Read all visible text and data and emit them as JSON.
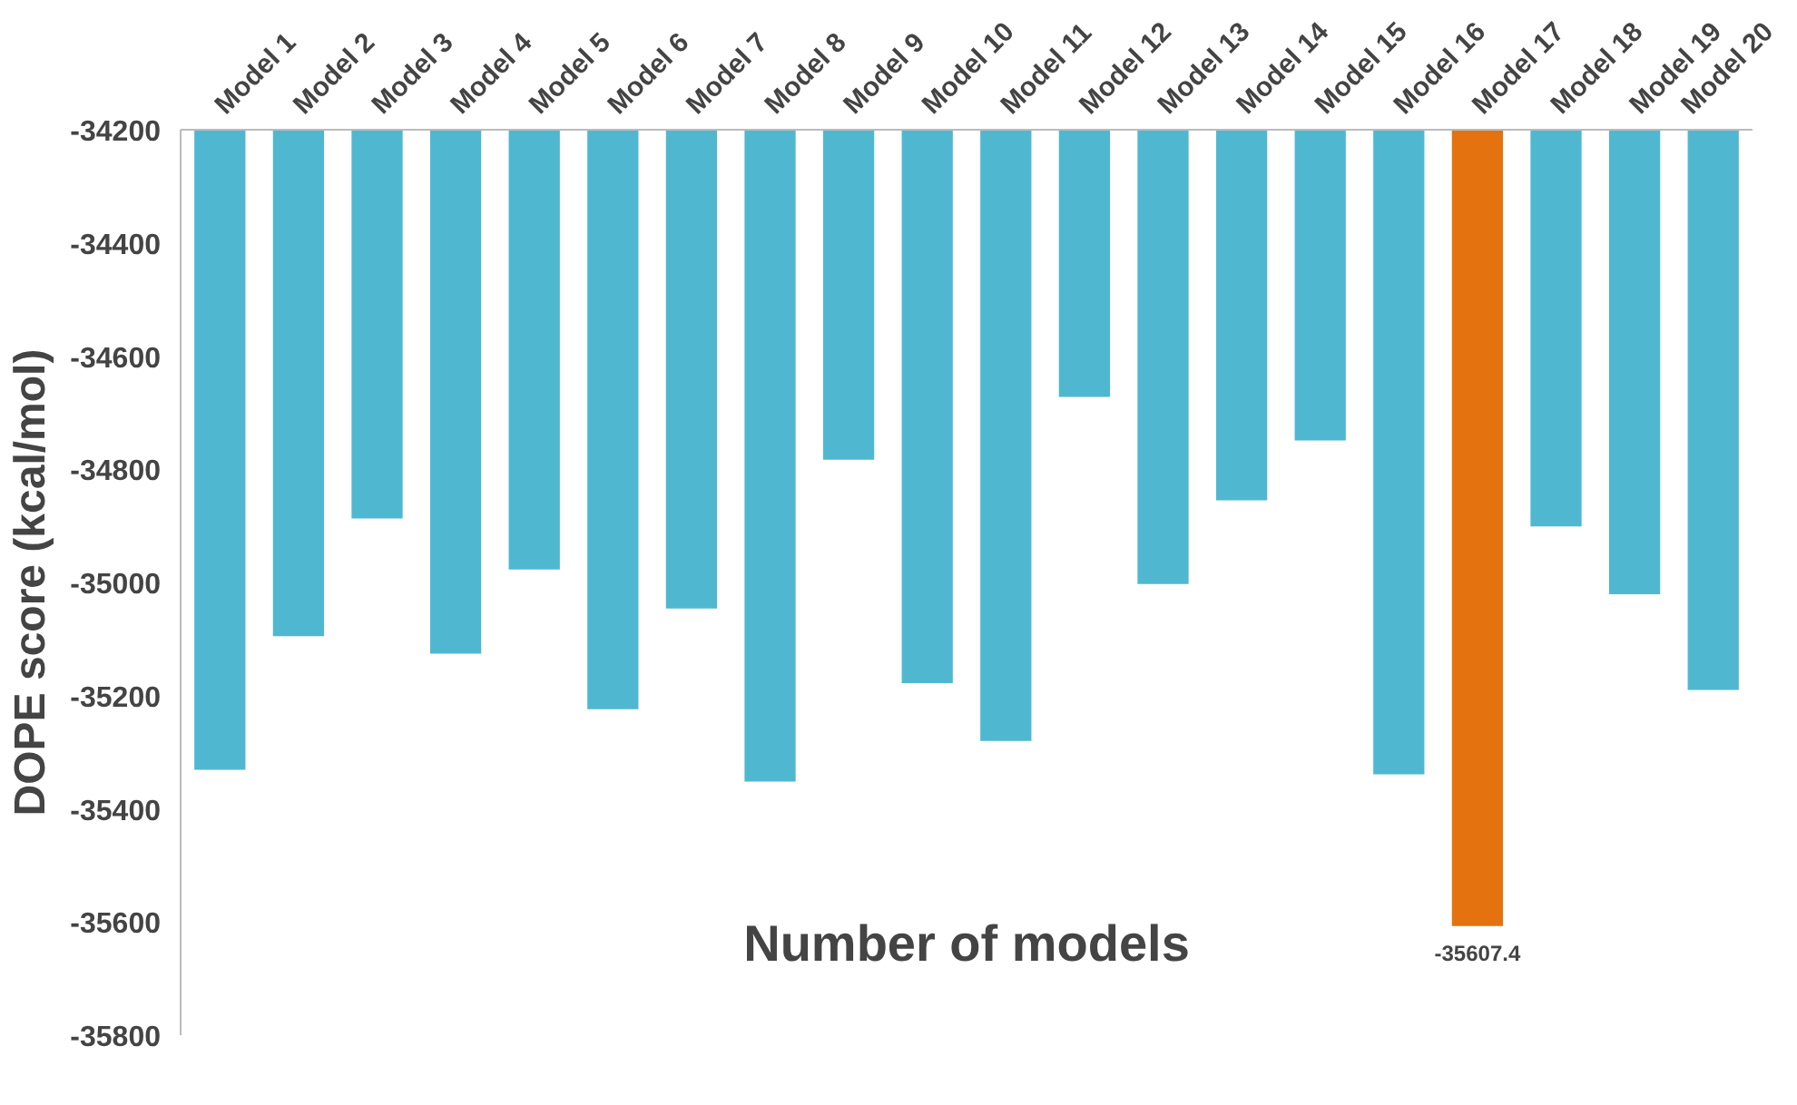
{
  "chart_data": {
    "type": "bar",
    "xlabel": "Number of models",
    "ylabel": "DOPE score (kcal/mol)",
    "categories": [
      "Model 1",
      "Model 2",
      "Model 3",
      "Model 4",
      "Model 5",
      "Model 6",
      "Model 7",
      "Model 8",
      "Model 9",
      "Model 10",
      "Model 11",
      "Model 12",
      "Model 13",
      "Model 14",
      "Model 15",
      "Model 16",
      "Model 17",
      "Model 18",
      "Model 19",
      "Model 20"
    ],
    "values": [
      -35331,
      -35095,
      -34887,
      -35126,
      -34977,
      -35224,
      -35046,
      -35352,
      -34783,
      -35178,
      -35280,
      -34672,
      -35003,
      -34855,
      -34749,
      -35339,
      -35607.4,
      -34901,
      -35021,
      -35190
    ],
    "colors": [
      "#4fb8d0",
      "#4fb8d0",
      "#4fb8d0",
      "#4fb8d0",
      "#4fb8d0",
      "#4fb8d0",
      "#4fb8d0",
      "#4fb8d0",
      "#4fb8d0",
      "#4fb8d0",
      "#4fb8d0",
      "#4fb8d0",
      "#4fb8d0",
      "#4fb8d0",
      "#4fb8d0",
      "#4fb8d0",
      "#e3720f",
      "#4fb8d0",
      "#4fb8d0",
      "#4fb8d0"
    ],
    "value_labels": [
      null,
      null,
      null,
      null,
      null,
      null,
      null,
      null,
      null,
      null,
      null,
      null,
      null,
      null,
      null,
      null,
      "-35607.4",
      null,
      null,
      null
    ],
    "ylim": [
      -35800,
      -34200
    ],
    "yticks": [
      -34200,
      -34400,
      -34600,
      -34800,
      -35000,
      -35200,
      -35400,
      -35600,
      -35800
    ],
    "grid": false
  }
}
